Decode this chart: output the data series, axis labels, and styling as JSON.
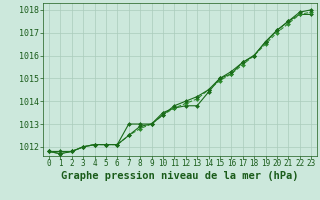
{
  "title": "Graphe pression niveau de la mer (hPa)",
  "x_labels": [
    "0",
    "1",
    "2",
    "3",
    "4",
    "5",
    "6",
    "7",
    "8",
    "9",
    "10",
    "11",
    "12",
    "13",
    "14",
    "15",
    "16",
    "17",
    "18",
    "19",
    "20",
    "21",
    "22",
    "23"
  ],
  "x_values": [
    0,
    1,
    2,
    3,
    4,
    5,
    6,
    7,
    8,
    9,
    10,
    11,
    12,
    13,
    14,
    15,
    16,
    17,
    18,
    19,
    20,
    21,
    22,
    23
  ],
  "series": [
    [
      1011.8,
      1011.8,
      1011.8,
      1012.0,
      1012.1,
      1012.1,
      1012.1,
      1013.0,
      1013.0,
      1013.0,
      1013.5,
      1013.7,
      1013.8,
      1013.8,
      1014.4,
      1015.0,
      1015.2,
      1015.7,
      1016.0,
      1016.6,
      1017.1,
      1017.5,
      1017.8,
      1017.8
    ],
    [
      1011.8,
      1011.7,
      1011.8,
      1012.0,
      1012.1,
      1012.1,
      1012.1,
      1012.5,
      1012.8,
      1013.0,
      1013.4,
      1013.7,
      1013.9,
      1014.1,
      1014.5,
      1014.9,
      1015.2,
      1015.6,
      1016.0,
      1016.5,
      1017.0,
      1017.4,
      1017.8,
      1017.9
    ],
    [
      1011.8,
      1011.7,
      1011.8,
      1012.0,
      1012.1,
      1012.1,
      1012.1,
      1012.5,
      1012.9,
      1013.0,
      1013.4,
      1013.8,
      1014.0,
      1014.2,
      1014.5,
      1015.0,
      1015.3,
      1015.7,
      1016.0,
      1016.6,
      1017.1,
      1017.5,
      1017.9,
      1018.0
    ]
  ],
  "line_colors": [
    "#1a6b1a",
    "#2d8c2d",
    "#1a6b1a"
  ],
  "line_styles": [
    "-",
    "--",
    "-"
  ],
  "marker": "D",
  "marker_size": 2.0,
  "background_color": "#cce8dc",
  "grid_color": "#aaccbb",
  "text_color": "#1a5c1a",
  "ylim": [
    1011.6,
    1018.3
  ],
  "yticks": [
    1012,
    1013,
    1014,
    1015,
    1016,
    1017,
    1018
  ],
  "xlim": [
    -0.5,
    23.5
  ],
  "title_fontsize": 7.5,
  "tick_fontsize": 6.0,
  "linewidth": 0.8
}
